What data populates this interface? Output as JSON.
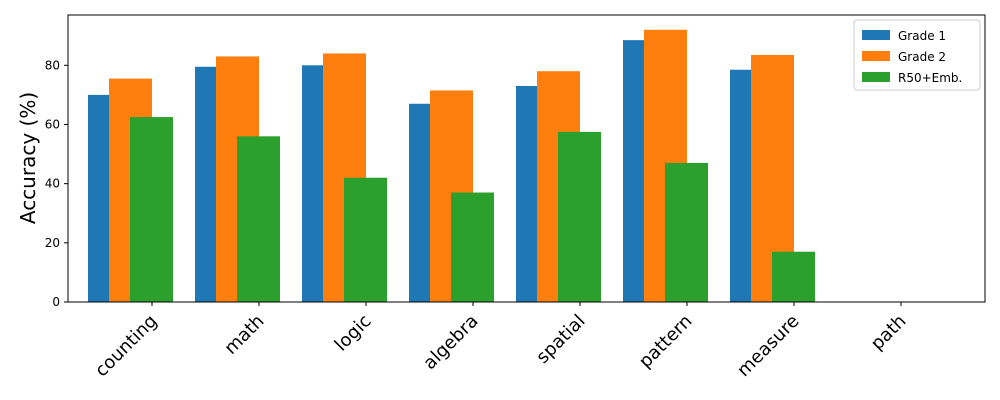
{
  "chart_data": {
    "type": "bar",
    "title": "",
    "xlabel": "",
    "ylabel": "Accuracy (%)",
    "ylim": [
      0,
      97
    ],
    "yticks": [
      0,
      20,
      40,
      60,
      80
    ],
    "grid": false,
    "legend_position": "top-right",
    "categories": [
      "counting",
      "math",
      "logic",
      "algebra",
      "spatial",
      "pattern",
      "measure",
      "path"
    ],
    "series": [
      {
        "name": "Grade 1",
        "color": "#1f77b4",
        "values": [
          70,
          79.5,
          80,
          67,
          73,
          88.5,
          78.5,
          0
        ]
      },
      {
        "name": "Grade 2",
        "color": "#ff7f0e",
        "values": [
          75.5,
          83,
          84,
          71.5,
          78,
          92,
          83.5,
          0
        ]
      },
      {
        "name": "R50+Emb.",
        "color": "#2ca02c",
        "values": [
          62.5,
          56,
          42,
          37,
          57.5,
          47,
          17,
          0
        ]
      }
    ]
  }
}
